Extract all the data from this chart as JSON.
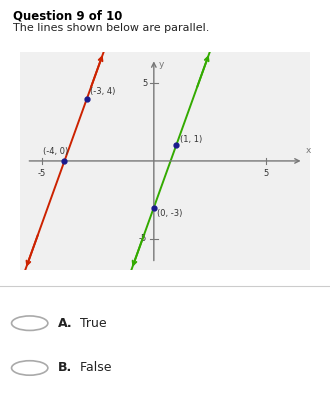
{
  "title": "Question 9 of 10",
  "subtitle": "The lines shown below are parallel.",
  "answer_a_bold": "A.",
  "answer_a_text": " True",
  "answer_b_bold": "B.",
  "answer_b_text": " False",
  "xlim": [
    -6,
    7
  ],
  "ylim": [
    -7,
    7
  ],
  "red_line_points": [
    [
      -4,
      0
    ],
    [
      -3,
      4
    ]
  ],
  "green_line_points": [
    [
      0,
      -3
    ],
    [
      1,
      1
    ]
  ],
  "red_color": "#cc2200",
  "green_color": "#33aa00",
  "point_color": "#1a1a8c",
  "bg_color": "#ffffff",
  "graph_bg": "#f0f0f0",
  "axis_color": "#777777",
  "label_color": "#333333",
  "fig_width": 3.3,
  "fig_height": 4.18,
  "dpi": 100
}
